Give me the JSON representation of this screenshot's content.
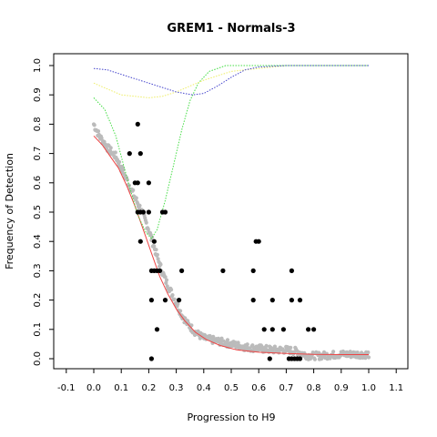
{
  "chart_data": {
    "type": "scatter",
    "title": "GREM1 - Normals-3",
    "xlabel": "Progression to H9",
    "ylabel": "Frequency of Detection",
    "xlim": [
      -0.1,
      1.1
    ],
    "ylim": [
      0.0,
      1.0
    ],
    "xticks": [
      "-0.1",
      "0.0",
      "0.1",
      "0.2",
      "0.3",
      "0.4",
      "0.5",
      "0.6",
      "0.7",
      "0.8",
      "0.9",
      "1.0",
      "1.1"
    ],
    "yticks": [
      "0.0",
      "0.1",
      "0.2",
      "0.3",
      "0.4",
      "0.5",
      "0.6",
      "0.7",
      "0.8",
      "0.9",
      "1.0"
    ],
    "grid": false,
    "legend": "none",
    "series": [
      {
        "kind": "points",
        "color": "#000000",
        "points": [
          [
            0.16,
            0.8
          ],
          [
            0.13,
            0.7
          ],
          [
            0.17,
            0.7
          ],
          [
            0.15,
            0.6
          ],
          [
            0.16,
            0.6
          ],
          [
            0.2,
            0.6
          ],
          [
            0.16,
            0.5
          ],
          [
            0.17,
            0.5
          ],
          [
            0.18,
            0.5
          ],
          [
            0.2,
            0.5
          ],
          [
            0.25,
            0.5
          ],
          [
            0.26,
            0.5
          ],
          [
            0.17,
            0.4
          ],
          [
            0.22,
            0.4
          ],
          [
            0.59,
            0.4
          ],
          [
            0.6,
            0.4
          ],
          [
            0.21,
            0.3
          ],
          [
            0.22,
            0.3
          ],
          [
            0.23,
            0.3
          ],
          [
            0.24,
            0.3
          ],
          [
            0.32,
            0.3
          ],
          [
            0.47,
            0.3
          ],
          [
            0.58,
            0.3
          ],
          [
            0.72,
            0.3
          ],
          [
            0.21,
            0.2
          ],
          [
            0.26,
            0.2
          ],
          [
            0.31,
            0.2
          ],
          [
            0.58,
            0.2
          ],
          [
            0.65,
            0.2
          ],
          [
            0.72,
            0.2
          ],
          [
            0.75,
            0.2
          ],
          [
            0.23,
            0.1
          ],
          [
            0.62,
            0.1
          ],
          [
            0.65,
            0.1
          ],
          [
            0.69,
            0.1
          ],
          [
            0.78,
            0.1
          ],
          [
            0.8,
            0.1
          ],
          [
            0.21,
            0.0
          ],
          [
            0.64,
            0.0
          ],
          [
            0.71,
            0.0
          ],
          [
            0.72,
            0.0
          ],
          [
            0.73,
            0.0
          ],
          [
            0.74,
            0.0
          ],
          [
            0.75,
            0.0
          ]
        ]
      },
      {
        "kind": "dense-points",
        "color": "#bbbbbb",
        "trend": [
          [
            0.0,
            0.8
          ],
          [
            0.02,
            0.76
          ],
          [
            0.05,
            0.72
          ],
          [
            0.08,
            0.69
          ],
          [
            0.1,
            0.65
          ],
          [
            0.12,
            0.61
          ],
          [
            0.14,
            0.57
          ],
          [
            0.16,
            0.53
          ],
          [
            0.18,
            0.49
          ],
          [
            0.2,
            0.44
          ],
          [
            0.22,
            0.38
          ],
          [
            0.24,
            0.32
          ],
          [
            0.26,
            0.27
          ],
          [
            0.28,
            0.23
          ],
          [
            0.3,
            0.19
          ],
          [
            0.32,
            0.15
          ],
          [
            0.34,
            0.12
          ],
          [
            0.37,
            0.09
          ],
          [
            0.4,
            0.07
          ],
          [
            0.45,
            0.06
          ],
          [
            0.5,
            0.05
          ],
          [
            0.55,
            0.04
          ],
          [
            0.6,
            0.035
          ],
          [
            0.65,
            0.03
          ],
          [
            0.7,
            0.03
          ],
          [
            0.74,
            0.025
          ],
          [
            0.78,
            0.01
          ],
          [
            0.82,
            0.01
          ],
          [
            0.9,
            0.015
          ],
          [
            1.0,
            0.015
          ]
        ]
      },
      {
        "kind": "line",
        "style": "solid",
        "color": "#ee4444",
        "points": [
          [
            0.0,
            0.76
          ],
          [
            0.03,
            0.73
          ],
          [
            0.06,
            0.69
          ],
          [
            0.09,
            0.65
          ],
          [
            0.12,
            0.59
          ],
          [
            0.15,
            0.52
          ],
          [
            0.18,
            0.44
          ],
          [
            0.21,
            0.36
          ],
          [
            0.24,
            0.28
          ],
          [
            0.27,
            0.22
          ],
          [
            0.3,
            0.17
          ],
          [
            0.33,
            0.13
          ],
          [
            0.37,
            0.09
          ],
          [
            0.41,
            0.065
          ],
          [
            0.46,
            0.045
          ],
          [
            0.52,
            0.03
          ],
          [
            0.6,
            0.022
          ],
          [
            0.7,
            0.018
          ],
          [
            0.8,
            0.015
          ],
          [
            0.9,
            0.014
          ],
          [
            1.0,
            0.014
          ]
        ]
      },
      {
        "kind": "line",
        "style": "dotted",
        "color": "#44dd44",
        "points": [
          [
            0.0,
            0.89
          ],
          [
            0.04,
            0.85
          ],
          [
            0.08,
            0.76
          ],
          [
            0.12,
            0.62
          ],
          [
            0.16,
            0.49
          ],
          [
            0.19,
            0.43
          ],
          [
            0.21,
            0.41
          ],
          [
            0.23,
            0.44
          ],
          [
            0.26,
            0.54
          ],
          [
            0.29,
            0.66
          ],
          [
            0.32,
            0.78
          ],
          [
            0.35,
            0.88
          ],
          [
            0.38,
            0.94
          ],
          [
            0.42,
            0.98
          ],
          [
            0.48,
            1.0
          ],
          [
            0.6,
            1.0
          ],
          [
            0.8,
            1.0
          ],
          [
            1.0,
            1.0
          ]
        ]
      },
      {
        "kind": "line",
        "style": "dotted",
        "color": "#eeee66",
        "points": [
          [
            0.0,
            0.94
          ],
          [
            0.05,
            0.92
          ],
          [
            0.1,
            0.9
          ],
          [
            0.15,
            0.895
          ],
          [
            0.2,
            0.89
          ],
          [
            0.25,
            0.895
          ],
          [
            0.3,
            0.91
          ],
          [
            0.35,
            0.93
          ],
          [
            0.4,
            0.95
          ],
          [
            0.45,
            0.965
          ],
          [
            0.5,
            0.98
          ],
          [
            0.6,
            0.99
          ],
          [
            0.7,
            1.0
          ],
          [
            0.85,
            1.0
          ],
          [
            1.0,
            1.0
          ]
        ]
      },
      {
        "kind": "line",
        "style": "dotted",
        "color": "#4444cc",
        "points": [
          [
            0.0,
            0.99
          ],
          [
            0.05,
            0.985
          ],
          [
            0.1,
            0.97
          ],
          [
            0.15,
            0.955
          ],
          [
            0.2,
            0.94
          ],
          [
            0.25,
            0.925
          ],
          [
            0.3,
            0.91
          ],
          [
            0.33,
            0.905
          ],
          [
            0.36,
            0.9
          ],
          [
            0.4,
            0.905
          ],
          [
            0.45,
            0.93
          ],
          [
            0.5,
            0.96
          ],
          [
            0.55,
            0.985
          ],
          [
            0.6,
            0.995
          ],
          [
            0.7,
            1.0
          ],
          [
            0.85,
            1.0
          ],
          [
            1.0,
            1.0
          ]
        ]
      }
    ]
  }
}
